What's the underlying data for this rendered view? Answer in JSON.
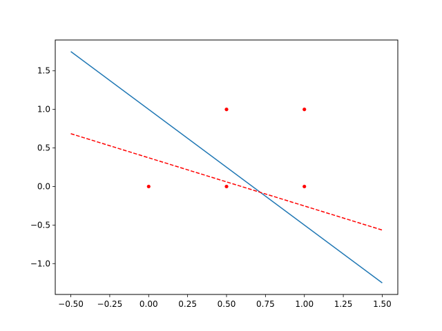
{
  "chart_data": {
    "type": "scatter",
    "title": "",
    "xlabel": "",
    "ylabel": "",
    "xlim": [
      -0.6,
      1.6
    ],
    "ylim": [
      -1.4,
      1.9
    ],
    "grid": false,
    "x_ticks": [
      -0.5,
      -0.25,
      0.0,
      0.25,
      0.5,
      0.75,
      1.0,
      1.25,
      1.5
    ],
    "x_tick_labels": [
      "−0.50",
      "−0.25",
      "0.00",
      "0.25",
      "0.50",
      "0.75",
      "1.00",
      "1.25",
      "1.50"
    ],
    "y_ticks": [
      -1.0,
      -0.5,
      0.0,
      0.5,
      1.0,
      1.5
    ],
    "y_tick_labels": [
      "−1.0",
      "−0.5",
      "0.0",
      "0.5",
      "1.0",
      "1.5"
    ],
    "series": [
      {
        "kind": "scatter",
        "color": "#ff0000",
        "points": [
          {
            "x": 0.0,
            "y": 0.0
          },
          {
            "x": 0.5,
            "y": 0.0
          },
          {
            "x": 0.5,
            "y": 1.0
          },
          {
            "x": 1.0,
            "y": 0.0
          },
          {
            "x": 1.0,
            "y": 1.0
          }
        ]
      },
      {
        "kind": "line",
        "style": "solid",
        "color": "#1f77b4",
        "points": [
          {
            "x": -0.5,
            "y": 1.75
          },
          {
            "x": 1.5,
            "y": -1.25
          }
        ]
      },
      {
        "kind": "line",
        "style": "dashed",
        "color": "#ff0000",
        "points": [
          {
            "x": -0.5,
            "y": 0.685
          },
          {
            "x": 1.5,
            "y": -0.565
          }
        ]
      }
    ]
  }
}
